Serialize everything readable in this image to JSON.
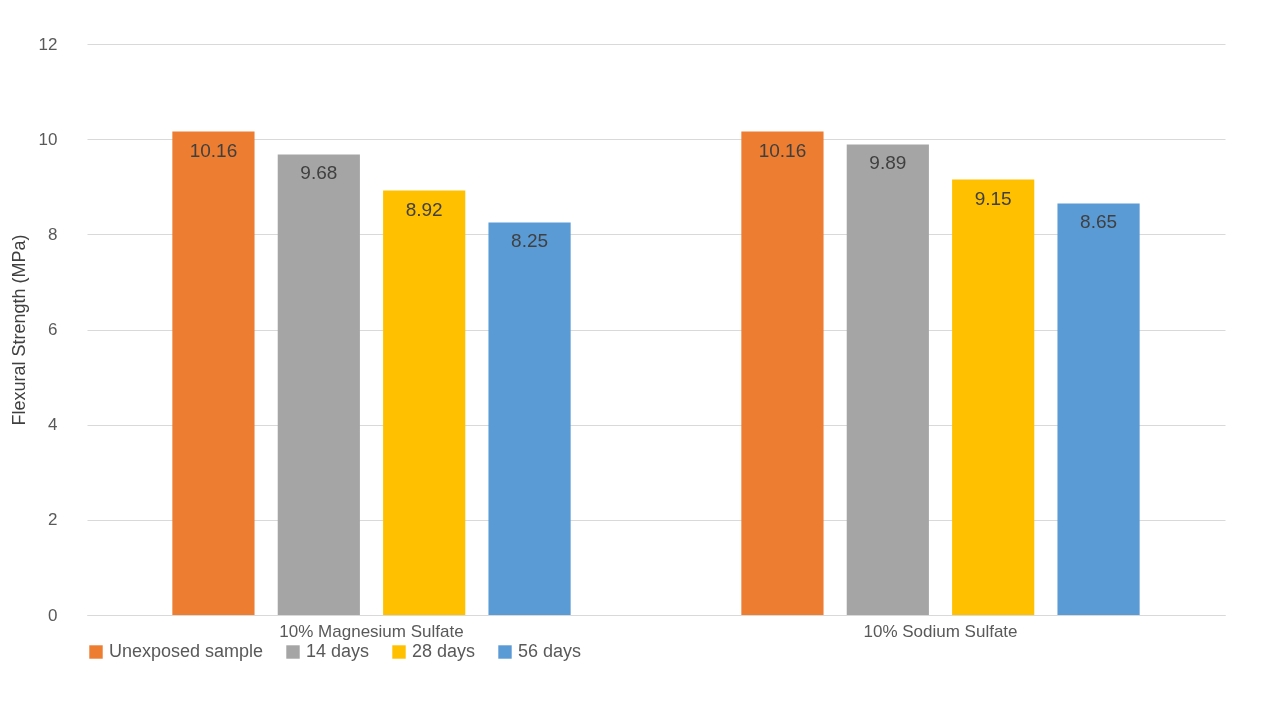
{
  "chart_data": {
    "type": "bar",
    "ylabel": "Flexural Strength (MPa)",
    "categories": [
      "10% Magnesium Sulfate",
      "10% Sodium Sulfate"
    ],
    "series": [
      {
        "name": "Unexposed sample",
        "color": "#ed7d31",
        "values": [
          10.16,
          10.16
        ]
      },
      {
        "name": "14 days",
        "color": "#a5a5a5",
        "values": [
          9.68,
          9.89
        ]
      },
      {
        "name": "28 days",
        "color": "#ffc000",
        "values": [
          8.92,
          9.15
        ]
      },
      {
        "name": "56 days",
        "color": "#5b9bd5",
        "values": [
          8.25,
          8.65
        ]
      }
    ],
    "ylim": [
      0,
      12
    ],
    "yticks": [
      0,
      2,
      4,
      6,
      8,
      10,
      12
    ],
    "grid": "y",
    "legend": "bottom",
    "data_labels": true
  }
}
